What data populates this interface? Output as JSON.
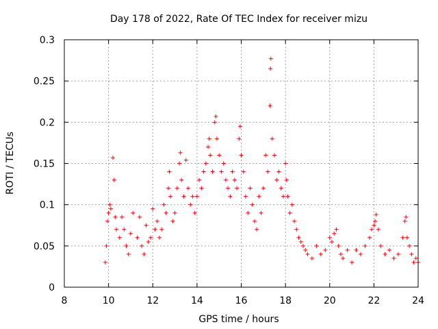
{
  "chart_data": {
    "type": "scatter",
    "title": "Day 178 of 2022, Rate Of TEC Index for receiver mizu",
    "xlabel": "GPS time / hours",
    "ylabel": "ROTI / TECUs",
    "xlim": [
      8,
      24
    ],
    "ylim": [
      0,
      0.3
    ],
    "x_ticks": [
      "8",
      "10",
      "12",
      "14",
      "16",
      "18",
      "20",
      "22",
      "24"
    ],
    "y_ticks": [
      "0",
      "0.05",
      "0.1",
      "0.15",
      "0.2",
      "0.25",
      "0.3"
    ],
    "grid": true,
    "marker": "plus",
    "color": "#ff0000",
    "series": [
      {
        "points": [
          [
            9.85,
            0.03
          ],
          [
            9.9,
            0.05
          ],
          [
            9.95,
            0.08
          ],
          [
            10.0,
            0.09
          ],
          [
            10.05,
            0.1
          ],
          [
            10.1,
            0.095
          ],
          [
            10.2,
            0.157
          ],
          [
            10.25,
            0.13
          ],
          [
            10.3,
            0.085
          ],
          [
            10.35,
            0.07
          ],
          [
            10.5,
            0.06
          ],
          [
            10.6,
            0.085
          ],
          [
            10.7,
            0.07
          ],
          [
            10.8,
            0.05
          ],
          [
            10.9,
            0.04
          ],
          [
            11.0,
            0.065
          ],
          [
            11.1,
            0.09
          ],
          [
            11.3,
            0.06
          ],
          [
            11.4,
            0.085
          ],
          [
            11.5,
            0.05
          ],
          [
            11.6,
            0.04
          ],
          [
            11.7,
            0.075
          ],
          [
            11.8,
            0.055
          ],
          [
            11.9,
            0.06
          ],
          [
            12.0,
            0.095
          ],
          [
            12.1,
            0.07
          ],
          [
            12.2,
            0.08
          ],
          [
            12.3,
            0.06
          ],
          [
            12.4,
            0.07
          ],
          [
            12.5,
            0.1
          ],
          [
            12.6,
            0.09
          ],
          [
            12.7,
            0.12
          ],
          [
            12.75,
            0.14
          ],
          [
            12.8,
            0.11
          ],
          [
            12.9,
            0.08
          ],
          [
            13.0,
            0.09
          ],
          [
            13.1,
            0.12
          ],
          [
            13.2,
            0.15
          ],
          [
            13.25,
            0.163
          ],
          [
            13.3,
            0.13
          ],
          [
            13.4,
            0.11
          ],
          [
            13.5,
            0.154
          ],
          [
            13.6,
            0.12
          ],
          [
            13.7,
            0.1
          ],
          [
            13.8,
            0.11
          ],
          [
            13.9,
            0.09
          ],
          [
            14.0,
            0.11
          ],
          [
            14.1,
            0.13
          ],
          [
            14.2,
            0.12
          ],
          [
            14.3,
            0.14
          ],
          [
            14.4,
            0.15
          ],
          [
            14.5,
            0.17
          ],
          [
            14.55,
            0.18
          ],
          [
            14.6,
            0.16
          ],
          [
            14.7,
            0.14
          ],
          [
            14.8,
            0.2
          ],
          [
            14.85,
            0.207
          ],
          [
            14.9,
            0.18
          ],
          [
            15.0,
            0.16
          ],
          [
            15.1,
            0.14
          ],
          [
            15.2,
            0.15
          ],
          [
            15.3,
            0.13
          ],
          [
            15.4,
            0.12
          ],
          [
            15.5,
            0.11
          ],
          [
            15.6,
            0.14
          ],
          [
            15.7,
            0.13
          ],
          [
            15.8,
            0.12
          ],
          [
            15.9,
            0.18
          ],
          [
            15.95,
            0.195
          ],
          [
            16.0,
            0.16
          ],
          [
            16.1,
            0.14
          ],
          [
            16.2,
            0.11
          ],
          [
            16.3,
            0.09
          ],
          [
            16.4,
            0.12
          ],
          [
            16.5,
            0.1
          ],
          [
            16.6,
            0.08
          ],
          [
            16.7,
            0.07
          ],
          [
            16.8,
            0.11
          ],
          [
            16.9,
            0.09
          ],
          [
            17.0,
            0.12
          ],
          [
            17.1,
            0.16
          ],
          [
            17.2,
            0.14
          ],
          [
            17.3,
            0.22
          ],
          [
            17.32,
            0.265
          ],
          [
            17.34,
            0.277
          ],
          [
            17.4,
            0.18
          ],
          [
            17.5,
            0.16
          ],
          [
            17.6,
            0.13
          ],
          [
            17.7,
            0.14
          ],
          [
            17.8,
            0.12
          ],
          [
            17.9,
            0.11
          ],
          [
            18.0,
            0.15
          ],
          [
            18.05,
            0.13
          ],
          [
            18.1,
            0.11
          ],
          [
            18.2,
            0.09
          ],
          [
            18.3,
            0.1
          ],
          [
            18.4,
            0.08
          ],
          [
            18.5,
            0.07
          ],
          [
            18.6,
            0.06
          ],
          [
            18.7,
            0.055
          ],
          [
            18.8,
            0.05
          ],
          [
            18.9,
            0.045
          ],
          [
            19.0,
            0.04
          ],
          [
            19.2,
            0.035
          ],
          [
            19.4,
            0.05
          ],
          [
            19.6,
            0.04
          ],
          [
            19.8,
            0.045
          ],
          [
            20.0,
            0.06
          ],
          [
            20.1,
            0.055
          ],
          [
            20.2,
            0.065
          ],
          [
            20.3,
            0.07
          ],
          [
            20.4,
            0.05
          ],
          [
            20.5,
            0.04
          ],
          [
            20.6,
            0.035
          ],
          [
            20.8,
            0.045
          ],
          [
            21.0,
            0.03
          ],
          [
            21.2,
            0.045
          ],
          [
            21.4,
            0.04
          ],
          [
            21.6,
            0.05
          ],
          [
            21.8,
            0.06
          ],
          [
            21.9,
            0.07
          ],
          [
            22.0,
            0.075
          ],
          [
            22.05,
            0.08
          ],
          [
            22.1,
            0.088
          ],
          [
            22.2,
            0.07
          ],
          [
            22.3,
            0.05
          ],
          [
            22.5,
            0.04
          ],
          [
            22.7,
            0.045
          ],
          [
            22.9,
            0.035
          ],
          [
            23.1,
            0.04
          ],
          [
            23.3,
            0.06
          ],
          [
            23.4,
            0.08
          ],
          [
            23.45,
            0.085
          ],
          [
            23.5,
            0.06
          ],
          [
            23.6,
            0.05
          ],
          [
            23.7,
            0.04
          ],
          [
            23.8,
            0.03
          ],
          [
            23.9,
            0.035
          ],
          [
            24.0,
            0.03
          ]
        ]
      }
    ]
  }
}
